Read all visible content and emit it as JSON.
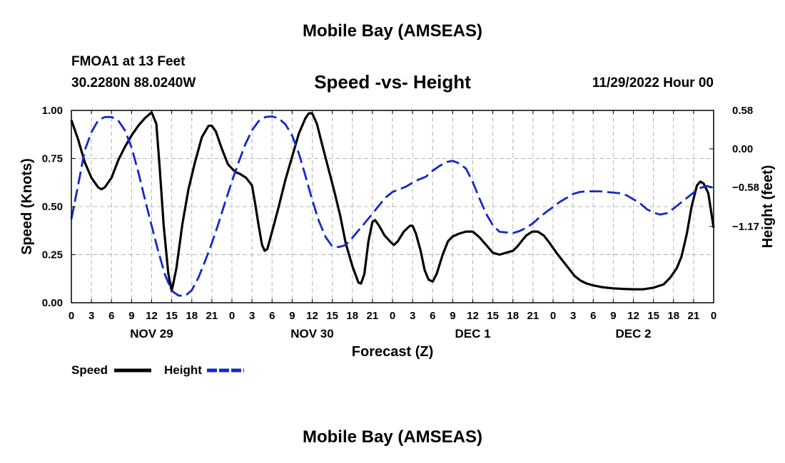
{
  "header": {
    "title": "Mobile Bay (AMSEAS)",
    "station": "FMOA1 at 13 Feet",
    "coordinates": "30.2280N  88.0240W",
    "subtitle": "Speed -vs- Height",
    "datetime": "11/29/2022 Hour 00",
    "footer_title": "Mobile Bay (AMSEAS)"
  },
  "chart_data": {
    "type": "line",
    "xlabel": "Forecast (Z)",
    "ylabel_left": "Speed (Knots)",
    "ylabel_right": "Height (feet)",
    "x_range_hours": [
      0,
      96
    ],
    "x_ticks": [
      {
        "h": 0,
        "label": "0"
      },
      {
        "h": 3,
        "label": "3"
      },
      {
        "h": 6,
        "label": "6"
      },
      {
        "h": 9,
        "label": "9"
      },
      {
        "h": 12,
        "label": "12"
      },
      {
        "h": 15,
        "label": "15"
      },
      {
        "h": 18,
        "label": "18"
      },
      {
        "h": 21,
        "label": "21"
      },
      {
        "h": 24,
        "label": "0"
      },
      {
        "h": 27,
        "label": "3"
      },
      {
        "h": 30,
        "label": "6"
      },
      {
        "h": 33,
        "label": "9"
      },
      {
        "h": 36,
        "label": "12"
      },
      {
        "h": 39,
        "label": "15"
      },
      {
        "h": 42,
        "label": "18"
      },
      {
        "h": 45,
        "label": "21"
      },
      {
        "h": 48,
        "label": "0"
      },
      {
        "h": 51,
        "label": "3"
      },
      {
        "h": 54,
        "label": "6"
      },
      {
        "h": 57,
        "label": "9"
      },
      {
        "h": 60,
        "label": "12"
      },
      {
        "h": 63,
        "label": "15"
      },
      {
        "h": 66,
        "label": "18"
      },
      {
        "h": 69,
        "label": "21"
      },
      {
        "h": 72,
        "label": "0"
      },
      {
        "h": 75,
        "label": "3"
      },
      {
        "h": 78,
        "label": "6"
      },
      {
        "h": 81,
        "label": "9"
      },
      {
        "h": 84,
        "label": "12"
      },
      {
        "h": 87,
        "label": "15"
      },
      {
        "h": 90,
        "label": "18"
      },
      {
        "h": 93,
        "label": "21"
      },
      {
        "h": 96,
        "label": "0"
      }
    ],
    "date_labels": [
      {
        "h": 12,
        "label": "NOV 29"
      },
      {
        "h": 36,
        "label": "NOV 30"
      },
      {
        "h": 60,
        "label": "DEC 1"
      },
      {
        "h": 84,
        "label": "DEC 2"
      }
    ],
    "left_axis": {
      "range": [
        0,
        1.0
      ],
      "ticks": [
        0.0,
        0.25,
        0.5,
        0.75,
        1.0
      ],
      "tick_labels": [
        "0.00",
        "0.25",
        "0.50",
        "0.75",
        "1.00"
      ]
    },
    "right_axis": {
      "range": [
        -2.32,
        0.58
      ],
      "ticks": [
        0.58,
        0.0,
        -0.58,
        -1.17
      ],
      "tick_labels": [
        "0.58",
        "0.00",
        "−0.58",
        "−1.17"
      ]
    },
    "grid": true,
    "series": [
      {
        "name": "Speed",
        "color": "#000000",
        "dash": "solid",
        "axis": "left",
        "points": [
          [
            0,
            0.95
          ],
          [
            1,
            0.85
          ],
          [
            2,
            0.73
          ],
          [
            3,
            0.65
          ],
          [
            4,
            0.6
          ],
          [
            4.5,
            0.59
          ],
          [
            5,
            0.6
          ],
          [
            6,
            0.65
          ],
          [
            7,
            0.74
          ],
          [
            8,
            0.81
          ],
          [
            9,
            0.87
          ],
          [
            10,
            0.92
          ],
          [
            11,
            0.96
          ],
          [
            12,
            0.99
          ],
          [
            12.7,
            0.93
          ],
          [
            13.2,
            0.7
          ],
          [
            13.8,
            0.4
          ],
          [
            14.5,
            0.15
          ],
          [
            15,
            0.06
          ],
          [
            15.7,
            0.18
          ],
          [
            16.6,
            0.41
          ],
          [
            17.5,
            0.59
          ],
          [
            18.4,
            0.72
          ],
          [
            19.5,
            0.86
          ],
          [
            20.5,
            0.92
          ],
          [
            21,
            0.92
          ],
          [
            21.6,
            0.89
          ],
          [
            22.5,
            0.8
          ],
          [
            23.4,
            0.72
          ],
          [
            24.5,
            0.68
          ],
          [
            25.2,
            0.67
          ],
          [
            26.1,
            0.65
          ],
          [
            27,
            0.61
          ],
          [
            27.5,
            0.51
          ],
          [
            28,
            0.4
          ],
          [
            28.5,
            0.3
          ],
          [
            28.9,
            0.27
          ],
          [
            29.3,
            0.28
          ],
          [
            30,
            0.37
          ],
          [
            31,
            0.5
          ],
          [
            32,
            0.64
          ],
          [
            33,
            0.76
          ],
          [
            34,
            0.88
          ],
          [
            35,
            0.96
          ],
          [
            35.5,
            0.985
          ],
          [
            36,
            0.985
          ],
          [
            36.7,
            0.93
          ],
          [
            37.5,
            0.82
          ],
          [
            38.4,
            0.7
          ],
          [
            39.3,
            0.58
          ],
          [
            40.2,
            0.45
          ],
          [
            41,
            0.31
          ],
          [
            42,
            0.19
          ],
          [
            42.9,
            0.105
          ],
          [
            43.3,
            0.1
          ],
          [
            43.8,
            0.15
          ],
          [
            44.4,
            0.32
          ],
          [
            45,
            0.42
          ],
          [
            45.4,
            0.43
          ],
          [
            46,
            0.4
          ],
          [
            46.8,
            0.35
          ],
          [
            47.6,
            0.32
          ],
          [
            48.2,
            0.3
          ],
          [
            48.8,
            0.32
          ],
          [
            49.7,
            0.37
          ],
          [
            50.6,
            0.4
          ],
          [
            51,
            0.4
          ],
          [
            51.5,
            0.36
          ],
          [
            52.2,
            0.27
          ],
          [
            52.8,
            0.17
          ],
          [
            53.4,
            0.12
          ],
          [
            54,
            0.11
          ],
          [
            54.6,
            0.15
          ],
          [
            55.5,
            0.25
          ],
          [
            56.3,
            0.32
          ],
          [
            57,
            0.345
          ],
          [
            58,
            0.36
          ],
          [
            59,
            0.37
          ],
          [
            60,
            0.37
          ],
          [
            61,
            0.34
          ],
          [
            62,
            0.3
          ],
          [
            63,
            0.26
          ],
          [
            64,
            0.25
          ],
          [
            64.5,
            0.255
          ],
          [
            65,
            0.26
          ],
          [
            66,
            0.27
          ],
          [
            66.6,
            0.29
          ],
          [
            67.3,
            0.32
          ],
          [
            68,
            0.35
          ],
          [
            68.9,
            0.37
          ],
          [
            69.7,
            0.37
          ],
          [
            70.6,
            0.35
          ],
          [
            71.5,
            0.31
          ],
          [
            72.5,
            0.26
          ],
          [
            73.4,
            0.22
          ],
          [
            74.3,
            0.18
          ],
          [
            75.2,
            0.14
          ],
          [
            76.1,
            0.115
          ],
          [
            77,
            0.1
          ],
          [
            78,
            0.09
          ],
          [
            79.5,
            0.08
          ],
          [
            81,
            0.075
          ],
          [
            82.5,
            0.072
          ],
          [
            84,
            0.07
          ],
          [
            85.5,
            0.07
          ],
          [
            87,
            0.078
          ],
          [
            88.5,
            0.095
          ],
          [
            89.5,
            0.13
          ],
          [
            90.5,
            0.18
          ],
          [
            91.2,
            0.24
          ],
          [
            92,
            0.36
          ],
          [
            92.7,
            0.5
          ],
          [
            93.5,
            0.61
          ],
          [
            94,
            0.63
          ],
          [
            94.5,
            0.62
          ],
          [
            95.2,
            0.57
          ],
          [
            96,
            0.39
          ]
        ]
      },
      {
        "name": "Height",
        "color": "#1428c8",
        "dash": "dashed",
        "axis": "right",
        "points": [
          [
            0,
            -1.06
          ],
          [
            1,
            -0.55
          ],
          [
            2,
            -0.02
          ],
          [
            3,
            0.25
          ],
          [
            4,
            0.43
          ],
          [
            5,
            0.48
          ],
          [
            6,
            0.48
          ],
          [
            7,
            0.43
          ],
          [
            8,
            0.28
          ],
          [
            9,
            0.02
          ],
          [
            10,
            -0.35
          ],
          [
            11,
            -0.76
          ],
          [
            12,
            -1.16
          ],
          [
            13,
            -1.55
          ],
          [
            14,
            -1.9
          ],
          [
            15,
            -2.14
          ],
          [
            16,
            -2.21
          ],
          [
            17,
            -2.22
          ],
          [
            18,
            -2.13
          ],
          [
            19,
            -1.94
          ],
          [
            20,
            -1.69
          ],
          [
            21,
            -1.42
          ],
          [
            22,
            -1.12
          ],
          [
            23,
            -0.8
          ],
          [
            24,
            -0.49
          ],
          [
            25,
            -0.2
          ],
          [
            26,
            0.07
          ],
          [
            27,
            0.28
          ],
          [
            28,
            0.42
          ],
          [
            29,
            0.48
          ],
          [
            30,
            0.49
          ],
          [
            31,
            0.46
          ],
          [
            32,
            0.37
          ],
          [
            33,
            0.2
          ],
          [
            34,
            -0.07
          ],
          [
            35,
            -0.41
          ],
          [
            36,
            -0.77
          ],
          [
            37,
            -1.09
          ],
          [
            38,
            -1.33
          ],
          [
            39,
            -1.47
          ],
          [
            40,
            -1.48
          ],
          [
            41,
            -1.45
          ],
          [
            42,
            -1.34
          ],
          [
            43,
            -1.22
          ],
          [
            44,
            -1.1
          ],
          [
            45,
            -0.98
          ],
          [
            46,
            -0.85
          ],
          [
            47,
            -0.73
          ],
          [
            48,
            -0.65
          ],
          [
            49,
            -0.61
          ],
          [
            50,
            -0.57
          ],
          [
            51,
            -0.51
          ],
          [
            52,
            -0.46
          ],
          [
            53,
            -0.42
          ],
          [
            54,
            -0.33
          ],
          [
            55,
            -0.26
          ],
          [
            56,
            -0.2
          ],
          [
            57,
            -0.18
          ],
          [
            58,
            -0.22
          ],
          [
            59,
            -0.3
          ],
          [
            60,
            -0.5
          ],
          [
            61,
            -0.75
          ],
          [
            62,
            -0.98
          ],
          [
            63,
            -1.15
          ],
          [
            64,
            -1.25
          ],
          [
            65,
            -1.26
          ],
          [
            66,
            -1.27
          ],
          [
            67,
            -1.24
          ],
          [
            68,
            -1.19
          ],
          [
            69,
            -1.12
          ],
          [
            70,
            -1.03
          ],
          [
            71,
            -0.95
          ],
          [
            72,
            -0.88
          ],
          [
            73,
            -0.8
          ],
          [
            74,
            -0.74
          ],
          [
            75,
            -0.68
          ],
          [
            76,
            -0.65
          ],
          [
            77,
            -0.64
          ],
          [
            78,
            -0.64
          ],
          [
            79,
            -0.64
          ],
          [
            80,
            -0.65
          ],
          [
            81,
            -0.66
          ],
          [
            82,
            -0.67
          ],
          [
            83,
            -0.7
          ],
          [
            84,
            -0.76
          ],
          [
            85,
            -0.82
          ],
          [
            86,
            -0.91
          ],
          [
            87,
            -0.96
          ],
          [
            88,
            -0.99
          ],
          [
            89,
            -0.97
          ],
          [
            90,
            -0.9
          ],
          [
            91,
            -0.82
          ],
          [
            92,
            -0.74
          ],
          [
            93,
            -0.66
          ],
          [
            94,
            -0.59
          ],
          [
            95,
            -0.56
          ],
          [
            96,
            -0.59
          ]
        ]
      }
    ]
  }
}
